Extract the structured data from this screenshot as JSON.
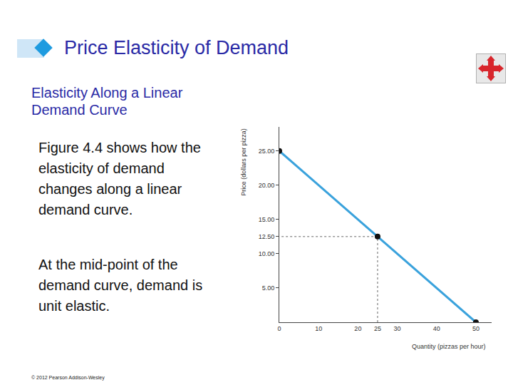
{
  "slide": {
    "title": "Price Elasticity of Demand",
    "heading": "Elasticity Along a Linear Demand Curve",
    "paragraphs": [
      "Figure 4.4 shows how the elasticity of demand changes along a linear demand curve.",
      "At the mid-point of the demand curve, demand is unit elastic."
    ],
    "footer": "© 2012 Pearson Addison-Wesley"
  },
  "chart_data": {
    "type": "line",
    "xlabel": "Quantity (pizzas per hour)",
    "ylabel": "Price (dollars per pizza)",
    "x": [
      0,
      25,
      50
    ],
    "values": [
      25,
      12.5,
      0
    ],
    "color": "#3aa2dc",
    "marker": "circle",
    "midpoint": {
      "x": 25,
      "y": 12.5
    },
    "xlim": [
      0,
      54
    ],
    "ylim": [
      0,
      28.5
    ],
    "xticks": [
      0,
      10,
      20,
      25,
      30,
      40,
      50
    ],
    "yticks": [
      {
        "value": 5,
        "label": "5.00"
      },
      {
        "value": 10,
        "label": "10.00"
      },
      {
        "value": 12.5,
        "label": "12.50"
      },
      {
        "value": 15,
        "label": "15.00"
      },
      {
        "value": 20,
        "label": "20.00"
      },
      {
        "value": 25,
        "label": "25.00"
      }
    ]
  }
}
